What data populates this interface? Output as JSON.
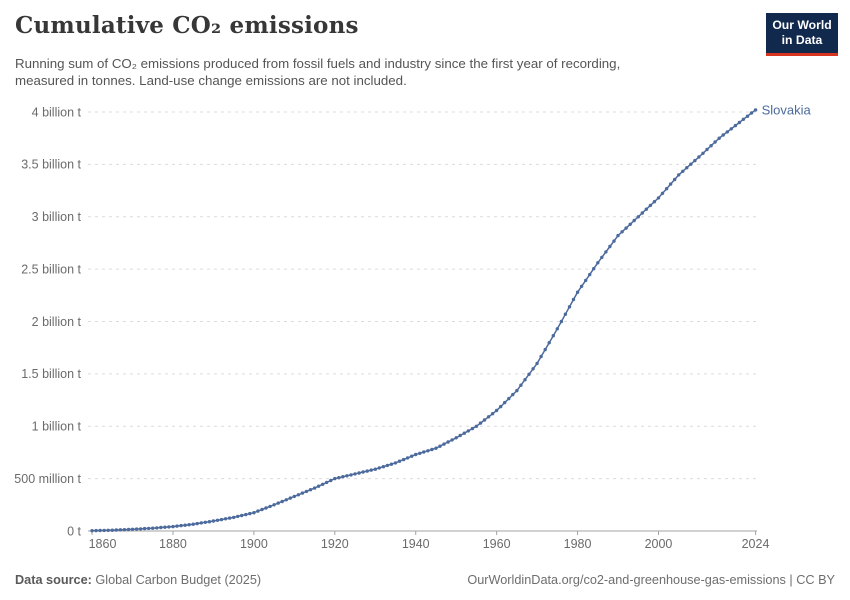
{
  "header": {
    "title": "Cumulative CO₂ emissions",
    "subtitle_line1": "Running sum of CO₂ emissions produced from fossil fuels and industry since the first year of recording,",
    "subtitle_line2": "measured in tonnes. Land-use change emissions are not included.",
    "logo": {
      "line1": "Our World",
      "line2": "in Data",
      "bg_color": "#12294e",
      "accent_color": "#d7351f"
    }
  },
  "chart_data": {
    "type": "line",
    "title": "Cumulative CO₂ emissions",
    "xlabel": "",
    "ylabel": "",
    "xlim": [
      1859,
      2024.35
    ],
    "ylim": [
      0,
      4
    ],
    "grid": true,
    "legend_position": "end-of-line-label",
    "line_color": "#4c6a9c",
    "grid_color": "#dcdcdc",
    "axis_color": "#a3a3a3",
    "tick_label_color": "#6b6b6b",
    "x_ticks": [
      {
        "v": 1860,
        "label": "1860"
      },
      {
        "v": 1880,
        "label": "1880"
      },
      {
        "v": 1900,
        "label": "1900"
      },
      {
        "v": 1920,
        "label": "1920"
      },
      {
        "v": 1940,
        "label": "1940"
      },
      {
        "v": 1960,
        "label": "1960"
      },
      {
        "v": 1980,
        "label": "1980"
      },
      {
        "v": 2000,
        "label": "2000"
      },
      {
        "v": 2024,
        "label": "2024"
      }
    ],
    "y_ticks": [
      {
        "v": 0,
        "label": "0 t"
      },
      {
        "v": 0.5,
        "label": "500 million t"
      },
      {
        "v": 1,
        "label": "1 billion t"
      },
      {
        "v": 1.5,
        "label": "1.5 billion t"
      },
      {
        "v": 2,
        "label": "2 billion t"
      },
      {
        "v": 2.5,
        "label": "2.5 billion t"
      },
      {
        "v": 3,
        "label": "3 billion t"
      },
      {
        "v": 3.5,
        "label": "3.5 billion t"
      },
      {
        "v": 4,
        "label": "4 billion t"
      }
    ],
    "series": [
      {
        "name": "Slovakia",
        "color": "#4c6a9c",
        "unit": "billion tonnes (cumulative)",
        "years": [
          1860,
          1865,
          1870,
          1875,
          1880,
          1885,
          1890,
          1895,
          1900,
          1905,
          1910,
          1915,
          1920,
          1925,
          1930,
          1935,
          1940,
          1945,
          1950,
          1955,
          1960,
          1965,
          1970,
          1975,
          1980,
          1985,
          1990,
          1995,
          2000,
          2005,
          2010,
          2015,
          2020,
          2024
        ],
        "values": [
          0.003,
          0.008,
          0.016,
          0.027,
          0.042,
          0.065,
          0.095,
          0.13,
          0.175,
          0.25,
          0.33,
          0.41,
          0.5,
          0.545,
          0.59,
          0.65,
          0.73,
          0.79,
          0.89,
          1.0,
          1.15,
          1.34,
          1.6,
          1.93,
          2.28,
          2.56,
          2.82,
          3.0,
          3.18,
          3.4,
          3.57,
          3.75,
          3.9,
          4.02
        ]
      }
    ]
  },
  "footer": {
    "source_label": "Data source:",
    "source_value": " Global Carbon Budget (2025)",
    "link_text": "OurWorldinData.org/co2-and-greenhouse-gas-emissions | CC BY"
  }
}
